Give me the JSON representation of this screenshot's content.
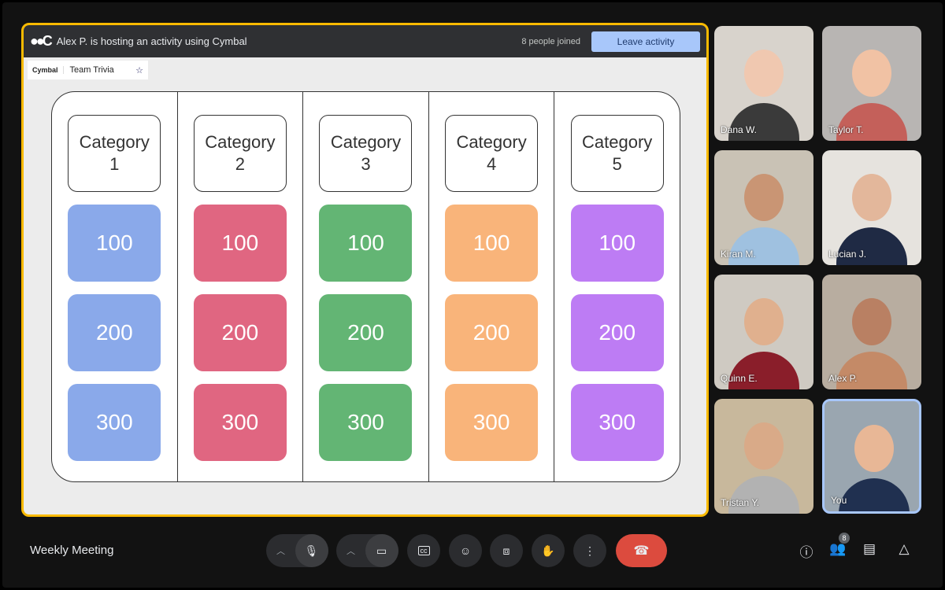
{
  "activity": {
    "host_text": "Alex P. is hosting an activity using Cymbal",
    "joined": "8 people joined",
    "leave_label": "Leave activity",
    "app_brand": "Cymbal",
    "app_name": "Team Trivia"
  },
  "board": {
    "columns": [
      {
        "category": "Category 1",
        "color": "#8aa9ea",
        "values": [
          "100",
          "200",
          "300"
        ]
      },
      {
        "category": "Category 2",
        "color": "#e06681",
        "values": [
          "100",
          "200",
          "300"
        ]
      },
      {
        "category": "Category 3",
        "color": "#63b574",
        "values": [
          "100",
          "200",
          "300"
        ]
      },
      {
        "category": "Category 4",
        "color": "#f9b47a",
        "values": [
          "100",
          "200",
          "300"
        ]
      },
      {
        "category": "Category 5",
        "color": "#bd7cf4",
        "values": [
          "100",
          "200",
          "300"
        ]
      }
    ]
  },
  "participants": [
    {
      "name": "Dana W.",
      "bg": "#d8d3cc",
      "skin": "#f0c8b0",
      "shirt": "#3a3a3a"
    },
    {
      "name": "Taylor T.",
      "bg": "#b8b5b3",
      "skin": "#f1c2a4",
      "shirt": "#c4605a"
    },
    {
      "name": "Kiran M.",
      "bg": "#c9c2b5",
      "skin": "#c99574",
      "shirt": "#9fc1e0"
    },
    {
      "name": "Lucian J.",
      "bg": "#e6e3de",
      "skin": "#e3b79b",
      "shirt": "#1f2a44"
    },
    {
      "name": "Quinn E.",
      "bg": "#cfcac2",
      "skin": "#e0b08e",
      "shirt": "#8a1e2a"
    },
    {
      "name": "Alex P.",
      "bg": "#b8ada0",
      "skin": "#b98063",
      "shirt": "#c48a67"
    },
    {
      "name": "Tristan Y.",
      "bg": "#c8b89c",
      "skin": "#d9aa88",
      "shirt": "#b2b2b2"
    },
    {
      "name": "You",
      "bg": "#9aa6b0",
      "skin": "#e8b796",
      "shirt": "#203050"
    }
  ],
  "meeting": {
    "title": "Weekly Meeting",
    "people_count": "8"
  },
  "colors": {
    "accent_border": "#f9ba00",
    "end_call": "#dc4b3e",
    "leave": "#a8c7fa"
  }
}
